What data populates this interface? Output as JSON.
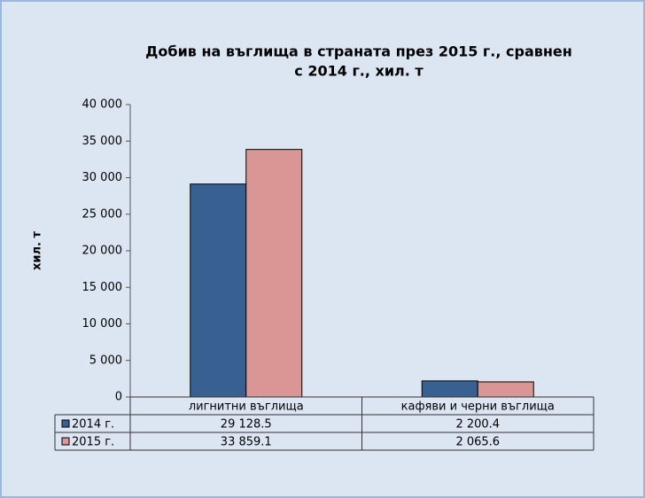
{
  "chart_data": {
    "type": "bar",
    "title": [
      "Добив на въглища в страната през 2015 г., сравнен",
      "с 2014 г., хил. т"
    ],
    "y_label": "хил. т",
    "categories": [
      "лигнитни въглища",
      "кафяви и черни въглища"
    ],
    "series": [
      {
        "name": "2014 г.",
        "color": "#386090",
        "values": [
          29128.5,
          2200.4
        ],
        "value_labels": [
          "29 128.5",
          "2 200.4"
        ]
      },
      {
        "name": "2015 г.",
        "color": "#d99694",
        "values": [
          33859.1,
          2065.6
        ],
        "value_labels": [
          "33 859.1",
          "2 065.6"
        ]
      }
    ],
    "ylim": [
      0,
      40000
    ],
    "yticks": [
      0,
      {
        "value": 5000,
        "label": "5 000"
      },
      {
        "value": 10000,
        "label": "10 000"
      },
      {
        "value": 15000,
        "label": "15 000"
      },
      {
        "value": 20000,
        "label": "20 000"
      },
      {
        "value": 25000,
        "label": "25 000"
      },
      {
        "value": 30000,
        "label": "30 000"
      },
      {
        "value": 35000,
        "label": "35 000"
      },
      {
        "value": 40000,
        "label": "40 000"
      }
    ],
    "grid": false
  }
}
